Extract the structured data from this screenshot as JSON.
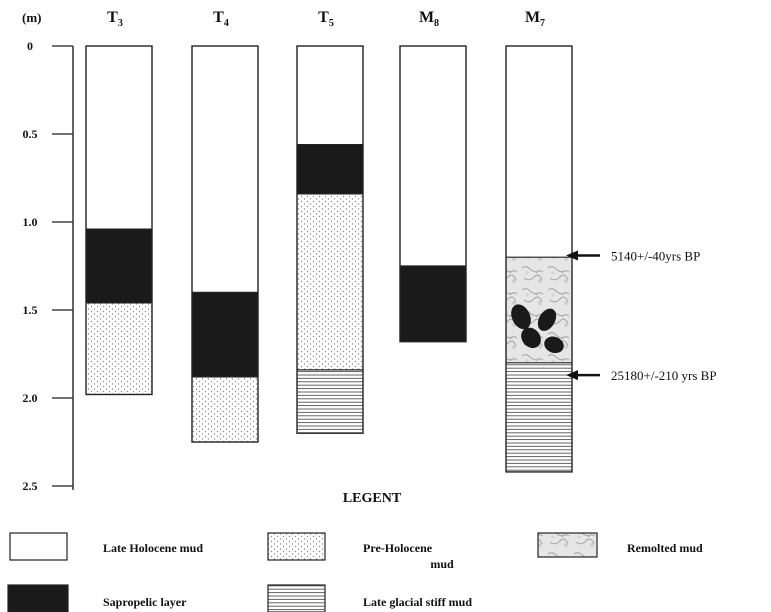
{
  "diagram": {
    "depth_unit": "(m)",
    "depth_ticks": [
      "0",
      "0.5",
      "1.0",
      "1.5",
      "2.0",
      "2.5"
    ],
    "depth_tick_values": [
      0,
      0.5,
      1.0,
      1.5,
      2.0,
      2.5
    ],
    "cores": [
      {
        "name": "T",
        "sub": "3",
        "layers": [
          {
            "type": "late_holocene",
            "top": 0.0,
            "bottom": 1.04
          },
          {
            "type": "sapropel",
            "top": 1.04,
            "bottom": 1.46
          },
          {
            "type": "pre_holocene",
            "top": 1.46,
            "bottom": 1.98
          }
        ]
      },
      {
        "name": "T",
        "sub": "4",
        "layers": [
          {
            "type": "late_holocene",
            "top": 0.0,
            "bottom": 1.4
          },
          {
            "type": "sapropel",
            "top": 1.4,
            "bottom": 1.88
          },
          {
            "type": "pre_holocene",
            "top": 1.88,
            "bottom": 2.25
          }
        ]
      },
      {
        "name": "T",
        "sub": "5",
        "layers": [
          {
            "type": "late_holocene",
            "top": 0.0,
            "bottom": 0.56
          },
          {
            "type": "sapropel",
            "top": 0.56,
            "bottom": 0.84
          },
          {
            "type": "pre_holocene",
            "top": 0.84,
            "bottom": 1.84
          },
          {
            "type": "late_glacial",
            "top": 1.84,
            "bottom": 2.2
          }
        ]
      },
      {
        "name": "M",
        "sub": "8",
        "layers": [
          {
            "type": "late_holocene",
            "top": 0.0,
            "bottom": 1.25
          },
          {
            "type": "sapropel",
            "top": 1.25,
            "bottom": 1.68
          }
        ]
      },
      {
        "name": "M",
        "sub": "7",
        "layers": [
          {
            "type": "late_holocene",
            "top": 0.0,
            "bottom": 1.2
          },
          {
            "type": "remolted",
            "top": 1.2,
            "bottom": 1.8
          },
          {
            "type": "late_glacial",
            "top": 1.8,
            "bottom": 2.42
          }
        ]
      }
    ],
    "dates": [
      {
        "label": "5140+/-40yrs BP",
        "depth": 1.19
      },
      {
        "label": "25180+/-210 yrs BP",
        "depth": 1.87
      }
    ],
    "legend": {
      "title": "LEGENT",
      "items": [
        {
          "type": "late_holocene",
          "label": "Late Holocene mud"
        },
        {
          "type": "pre_holocene",
          "label": "Pre-Holocene mud"
        },
        {
          "type": "remolted",
          "label": "Remolted mud"
        },
        {
          "type": "sapropel",
          "label": "Sapropelic layer"
        },
        {
          "type": "late_glacial",
          "label": "Late glacial stiff mud"
        }
      ]
    },
    "colors": {
      "sapropel": "#1a1a1a",
      "outline": "#222222",
      "pattern_ink": "#777777",
      "remolted_tint": "#c9c9c9"
    }
  }
}
